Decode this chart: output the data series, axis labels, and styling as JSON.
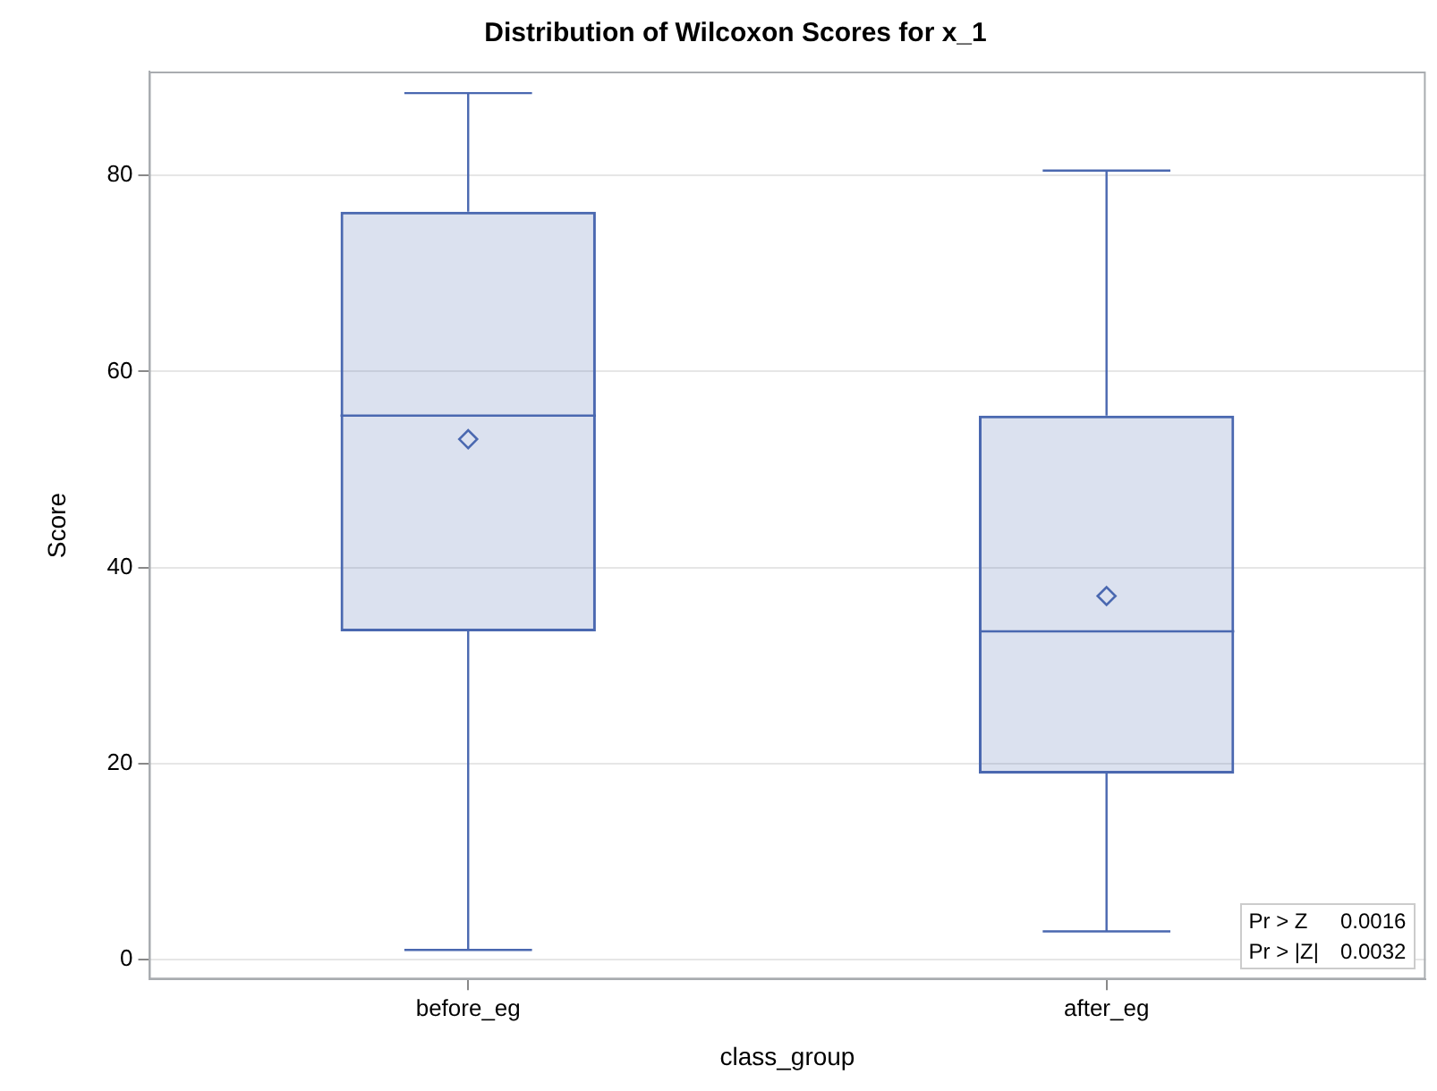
{
  "chart_data": {
    "type": "box",
    "title": "Distribution of Wilcoxon Scores for x_1",
    "xlabel": "class_group",
    "ylabel": "Score",
    "categories": [
      "before_eg",
      "after_eg"
    ],
    "boxes": [
      {
        "low": 1.0,
        "q1": 33.5,
        "median": 55.5,
        "q3": 76.3,
        "high": 88.4,
        "mean": 53.1
      },
      {
        "low": 2.9,
        "q1": 19.0,
        "median": 33.5,
        "q3": 55.5,
        "high": 80.5,
        "mean": 37.1
      }
    ],
    "color": "#4a68b0",
    "ylim": [
      -2,
      90.6
    ],
    "yticks": [
      0,
      20,
      40,
      60,
      80
    ],
    "grid": "y",
    "marker": "diamond",
    "annotations": [
      "Pr > Z 0.0016",
      "Pr > |Z| 0.0032"
    ]
  }
}
